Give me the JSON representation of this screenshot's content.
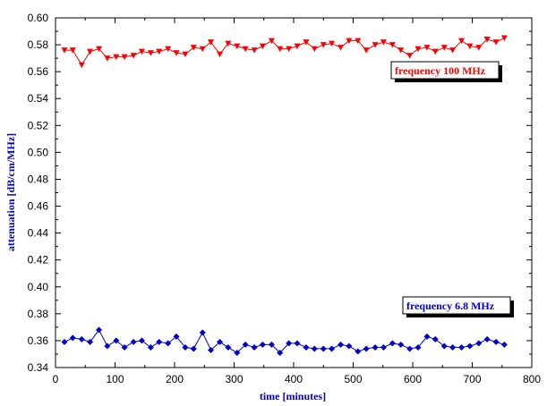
{
  "chart_data": {
    "type": "line",
    "xlabel": "time [minutes]",
    "ylabel": "attenuation [dB/cm/MHz]",
    "xlim": [
      0,
      800
    ],
    "ylim": [
      0.34,
      0.6
    ],
    "xticks": [
      0,
      100,
      200,
      300,
      400,
      500,
      600,
      700,
      800
    ],
    "yticks": [
      0.34,
      0.36,
      0.38,
      0.4,
      0.42,
      0.44,
      0.46,
      0.48,
      0.5,
      0.52,
      0.54,
      0.56,
      0.58,
      0.6
    ],
    "xtick_labels": [
      "0",
      "100",
      "200",
      "300",
      "400",
      "500",
      "600",
      "700",
      "800"
    ],
    "ytick_labels": [
      "0.34",
      "0.36",
      "0.38",
      "0.40",
      "0.42",
      "0.44",
      "0.46",
      "0.48",
      "0.50",
      "0.52",
      "0.54",
      "0.56",
      "0.58",
      "0.60"
    ],
    "grid": false,
    "series": [
      {
        "name": "frequency 100 MHz",
        "color": "#ff0000",
        "marker": "triangle-down",
        "x": [
          15,
          29,
          44,
          58,
          73,
          87,
          102,
          116,
          131,
          145,
          160,
          174,
          189,
          203,
          218,
          232,
          247,
          261,
          276,
          290,
          305,
          319,
          334,
          348,
          363,
          377,
          392,
          406,
          421,
          435,
          450,
          464,
          479,
          493,
          508,
          522,
          537,
          551,
          566,
          580,
          595,
          609,
          624,
          638,
          653,
          667,
          682,
          696,
          711,
          725,
          740,
          754
        ],
        "y": [
          0.576,
          0.576,
          0.565,
          0.575,
          0.577,
          0.57,
          0.571,
          0.571,
          0.572,
          0.575,
          0.574,
          0.575,
          0.577,
          0.574,
          0.573,
          0.578,
          0.577,
          0.582,
          0.573,
          0.581,
          0.579,
          0.577,
          0.576,
          0.579,
          0.583,
          0.577,
          0.577,
          0.579,
          0.582,
          0.577,
          0.58,
          0.581,
          0.578,
          0.583,
          0.583,
          0.576,
          0.58,
          0.582,
          0.58,
          0.576,
          0.572,
          0.577,
          0.578,
          0.575,
          0.578,
          0.576,
          0.583,
          0.579,
          0.578,
          0.584,
          0.582,
          0.585
        ]
      },
      {
        "name": "frequency 6.8 MHz",
        "color": "#0000cc",
        "marker": "diamond",
        "x": [
          15,
          29,
          44,
          58,
          73,
          87,
          102,
          116,
          131,
          145,
          160,
          174,
          189,
          203,
          218,
          232,
          247,
          261,
          276,
          290,
          305,
          319,
          334,
          348,
          363,
          377,
          392,
          406,
          421,
          435,
          450,
          464,
          479,
          493,
          508,
          522,
          537,
          551,
          566,
          580,
          595,
          609,
          624,
          638,
          653,
          667,
          682,
          696,
          711,
          725,
          740,
          754
        ],
        "y": [
          0.359,
          0.362,
          0.361,
          0.359,
          0.368,
          0.356,
          0.36,
          0.355,
          0.359,
          0.36,
          0.355,
          0.359,
          0.358,
          0.363,
          0.355,
          0.354,
          0.366,
          0.353,
          0.359,
          0.355,
          0.351,
          0.357,
          0.355,
          0.357,
          0.357,
          0.351,
          0.358,
          0.358,
          0.355,
          0.354,
          0.354,
          0.354,
          0.357,
          0.356,
          0.352,
          0.354,
          0.355,
          0.355,
          0.358,
          0.357,
          0.354,
          0.355,
          0.363,
          0.361,
          0.356,
          0.355,
          0.355,
          0.356,
          0.358,
          0.361,
          0.359,
          0.357
        ]
      }
    ],
    "legend": [
      {
        "label": "frequency 100 MHz",
        "color": "#ff0000",
        "placement": "upper-right"
      },
      {
        "label": "frequency 6.8 MHz",
        "color": "#0000cc",
        "placement": "lower-right"
      }
    ]
  }
}
